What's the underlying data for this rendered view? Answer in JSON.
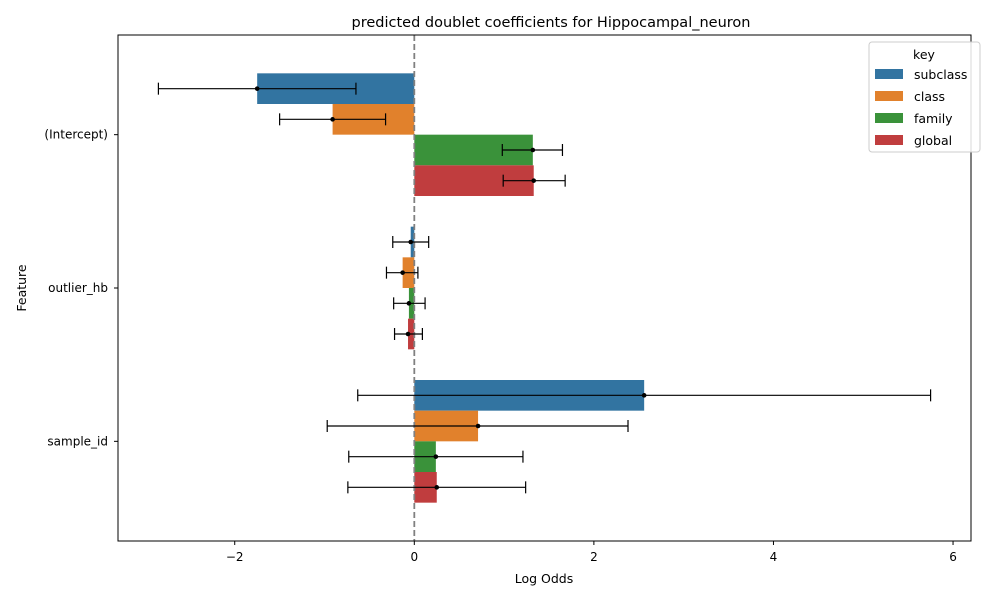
{
  "chart_data": {
    "type": "bar",
    "orientation": "horizontal",
    "title": "predicted doublet coefficients for Hippocampal_neuron",
    "xlabel": "Log Odds",
    "ylabel": "Feature",
    "xlim": [
      -3.3,
      6.2
    ],
    "xticks": [
      -2,
      0,
      2,
      4,
      6
    ],
    "xtick_labels": [
      "−2",
      "0",
      "2",
      "4",
      "6"
    ],
    "categories": [
      "(Intercept)",
      "outlier_hb",
      "sample_id"
    ],
    "reference_line": 0,
    "legend": {
      "title": "key",
      "placement": "top-right"
    },
    "series": [
      {
        "name": "subclass",
        "color": "#3274a1",
        "values": [
          -1.75,
          -0.04,
          2.56
        ],
        "ci_low": [
          -2.85,
          -0.24,
          -0.63
        ],
        "ci_high": [
          -0.65,
          0.16,
          5.75
        ]
      },
      {
        "name": "class",
        "color": "#e1812c",
        "values": [
          -0.91,
          -0.13,
          0.71
        ],
        "ci_low": [
          -1.5,
          -0.31,
          -0.97
        ],
        "ci_high": [
          -0.32,
          0.04,
          2.38
        ]
      },
      {
        "name": "family",
        "color": "#3a923a",
        "values": [
          1.32,
          -0.06,
          0.24
        ],
        "ci_low": [
          0.98,
          -0.23,
          -0.73
        ],
        "ci_high": [
          1.65,
          0.12,
          1.21
        ]
      },
      {
        "name": "global",
        "color": "#c03d3e",
        "values": [
          1.33,
          -0.07,
          0.25
        ],
        "ci_low": [
          0.99,
          -0.22,
          -0.74
        ],
        "ci_high": [
          1.68,
          0.09,
          1.24
        ]
      }
    ]
  }
}
